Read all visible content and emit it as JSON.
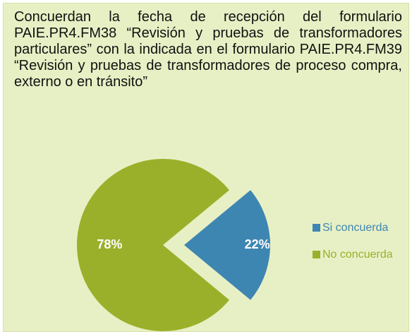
{
  "chart_data": {
    "type": "pie",
    "title": "Concuerdan la fecha de recepción del formulario PAIE.PR4.FM38 “Revisión y pruebas de transformadores particulares” con la indicada en el formulario PAIE.PR4.FM39 “Revisión y pruebas de transformadores de proceso compra, externo o en tránsito”",
    "categories": [
      "Si concuerda",
      "No concuerda"
    ],
    "values": [
      22,
      78
    ],
    "value_labels": [
      "22%",
      "78%"
    ],
    "colors": [
      "#3e86b2",
      "#9bb02a"
    ],
    "legend": "right"
  }
}
